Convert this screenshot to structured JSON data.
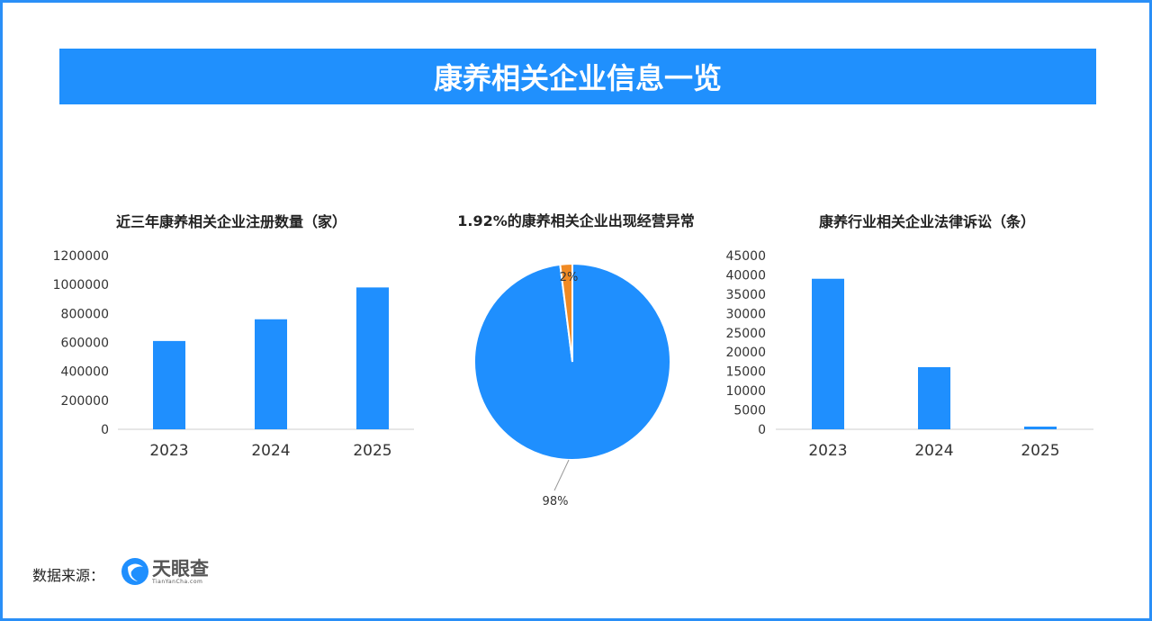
{
  "title": "康养相关企业信息一览",
  "source_label": "数据来源：",
  "logo": {
    "name": "天眼查",
    "url": "TianYanCha.com"
  },
  "colors": {
    "bar": "#1f8ffe",
    "accent": "#2090fd",
    "pie_minor": "#f08a24"
  },
  "chart_data": [
    {
      "type": "bar",
      "title": "近三年康养相关企业注册数量（家）",
      "categories": [
        "2023",
        "2024",
        "2025"
      ],
      "values": [
        610000,
        760000,
        980000
      ],
      "ylim": [
        0,
        1200000
      ],
      "yticks": [
        "0",
        "200000",
        "400000",
        "600000",
        "800000",
        "1000000",
        "1200000"
      ],
      "grid": false
    },
    {
      "type": "pie",
      "title": "1.92%的康养相关企业出现经营异常",
      "slices": [
        {
          "value": 98,
          "label": "98%"
        },
        {
          "value": 2,
          "label": "2%"
        }
      ]
    },
    {
      "type": "bar",
      "title": "康养行业相关企业法律诉讼（条）",
      "categories": [
        "2023",
        "2024",
        "2025"
      ],
      "values": [
        39000,
        16100,
        700
      ],
      "ylim": [
        0,
        45000
      ],
      "yticks": [
        "0",
        "5000",
        "10000",
        "15000",
        "20000",
        "25000",
        "30000",
        "35000",
        "40000",
        "45000"
      ],
      "grid": false
    }
  ]
}
